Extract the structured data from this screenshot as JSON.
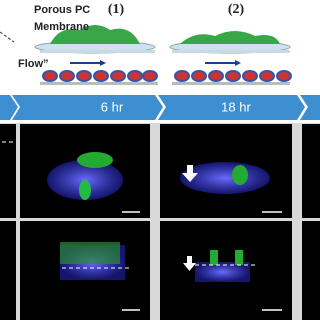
{
  "diagram": {
    "membrane_label_1": "Porous PC",
    "membrane_label_2": "Membrane",
    "flow_label": "Flow”",
    "step_1": "(1)",
    "step_2": "(2)",
    "timeline": [
      "6 hr",
      "18 hr"
    ]
  }
}
